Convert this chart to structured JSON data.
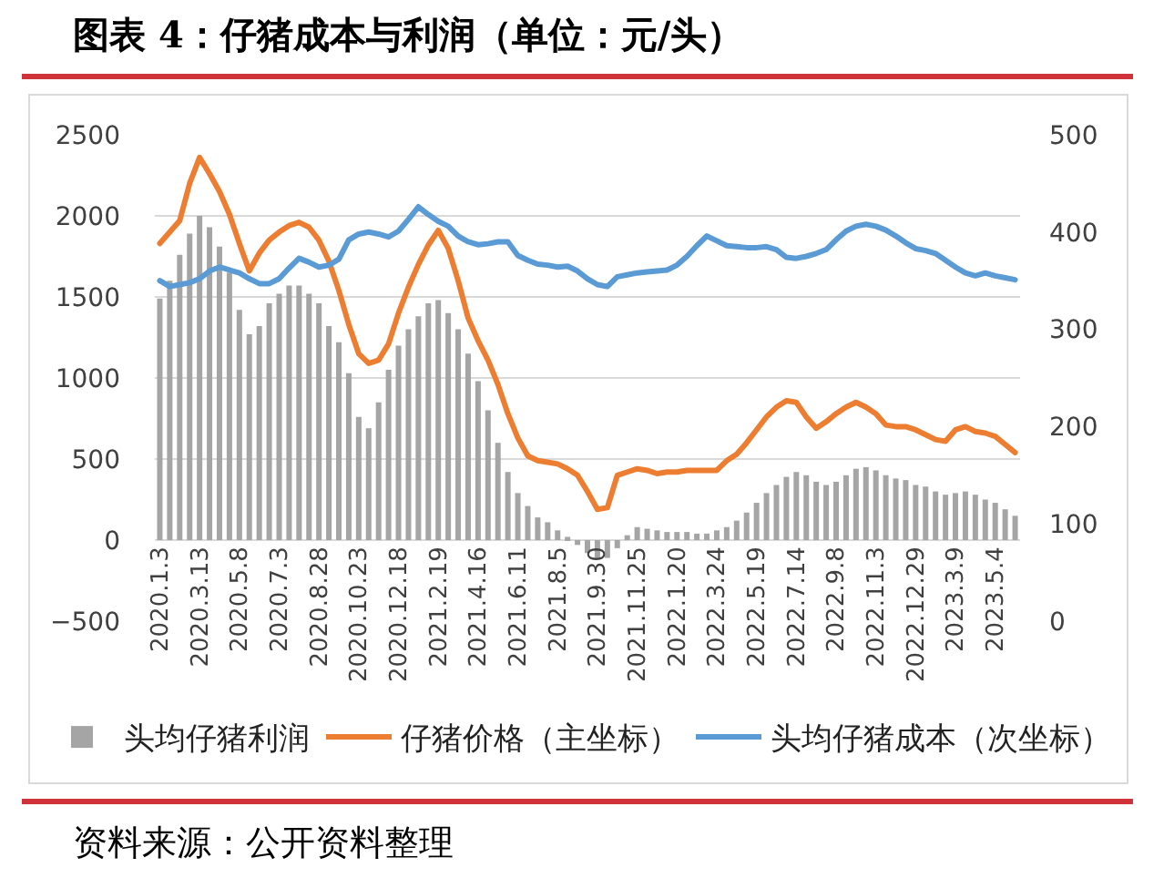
{
  "chart_data": {
    "type": "bar",
    "title": "图表 4：仔猪成本与利润（单位：元/头）",
    "categories": [
      "2020.1.3",
      null,
      null,
      null,
      "2020.3.13",
      null,
      null,
      null,
      "2020.5.8",
      null,
      null,
      null,
      "2020.7.3",
      null,
      null,
      null,
      "2020.8.28",
      null,
      null,
      null,
      "2020.10.23",
      null,
      null,
      null,
      "2020.12.18",
      null,
      null,
      null,
      "2021.2.19",
      null,
      null,
      null,
      "2021.4.16",
      null,
      null,
      null,
      "2021.6.11",
      null,
      null,
      null,
      "2021.8.5",
      null,
      null,
      null,
      "2021.9.30",
      null,
      null,
      null,
      "2021.11.25",
      null,
      null,
      null,
      "2022.1.20",
      null,
      null,
      null,
      "2022.3.24",
      null,
      null,
      null,
      "2022.5.19",
      null,
      null,
      null,
      "2022.7.14",
      null,
      null,
      null,
      "2022.9.8",
      null,
      null,
      null,
      "2022.11.3",
      null,
      null,
      null,
      "2022.12.29",
      null,
      null,
      null,
      "2023.3.9",
      null,
      null,
      null,
      "2023.5.4",
      null,
      null
    ],
    "series": [
      {
        "name": "头均仔猪利润",
        "color": "#a5a5a5",
        "values": [
          1490,
          1600,
          1760,
          1890,
          2000,
          1930,
          1810,
          1650,
          1420,
          1270,
          1320,
          1460,
          1520,
          1570,
          1570,
          1520,
          1460,
          1320,
          1220,
          1030,
          760,
          690,
          850,
          1050,
          1200,
          1300,
          1380,
          1460,
          1480,
          1400,
          1300,
          1150,
          980,
          800,
          600,
          420,
          290,
          210,
          140,
          110,
          60,
          20,
          -30,
          -80,
          -110,
          -110,
          -50,
          30,
          80,
          70,
          60,
          50,
          50,
          50,
          40,
          40,
          60,
          80,
          120,
          170,
          230,
          290,
          340,
          390,
          420,
          400,
          360,
          340,
          360,
          400,
          440,
          450,
          430,
          400,
          380,
          370,
          340,
          330,
          300,
          280,
          290,
          300,
          280,
          250,
          230,
          190,
          150
        ]
      },
      {
        "name": "仔猪价格（主坐标）",
        "type": "line",
        "color": "#ed7d31",
        "values": [
          1830,
          1900,
          1970,
          2200,
          2360,
          2260,
          2150,
          2010,
          1830,
          1660,
          1770,
          1850,
          1900,
          1940,
          1960,
          1930,
          1850,
          1720,
          1540,
          1330,
          1150,
          1090,
          1110,
          1210,
          1400,
          1560,
          1700,
          1820,
          1910,
          1800,
          1600,
          1370,
          1230,
          1110,
          960,
          780,
          630,
          520,
          490,
          480,
          470,
          440,
          400,
          300,
          190,
          200,
          400,
          420,
          440,
          430,
          410,
          420,
          420,
          430,
          430,
          430,
          430,
          490,
          530,
          600,
          680,
          760,
          820,
          860,
          850,
          760,
          690,
          730,
          780,
          820,
          850,
          820,
          780,
          710,
          700,
          700,
          680,
          650,
          620,
          610,
          680,
          700,
          670,
          660,
          640,
          590,
          540
        ]
      },
      {
        "name": "头均仔猪成本（次坐标）",
        "type": "line",
        "color": "#5b9bd5",
        "axis": "y2",
        "values": [
          350,
          344,
          346,
          348,
          352,
          360,
          364,
          361,
          358,
          352,
          347,
          347,
          352,
          363,
          373,
          369,
          364,
          366,
          372,
          392,
          398,
          400,
          398,
          395,
          401,
          413,
          426,
          418,
          411,
          406,
          396,
          390,
          387,
          388,
          390,
          390,
          376,
          371,
          367,
          366,
          364,
          365,
          360,
          352,
          346,
          344,
          354,
          356,
          358,
          359,
          360,
          361,
          366,
          375,
          386,
          396,
          391,
          386,
          385,
          384,
          384,
          385,
          382,
          374,
          373,
          375,
          378,
          382,
          392,
          401,
          406,
          408,
          406,
          402,
          396,
          389,
          383,
          381,
          378,
          371,
          364,
          358,
          355,
          358,
          355,
          353,
          351
        ]
      }
    ],
    "ylim": [
      -500,
      2500
    ],
    "yticks": [
      -500,
      0,
      500,
      1000,
      1500,
      2000,
      2500
    ],
    "y2lim": [
      0,
      500
    ],
    "y2ticks": [
      0,
      100,
      200,
      300,
      400,
      500
    ],
    "grid": "y",
    "legend": "bottom",
    "marker": "none",
    "line_style": "solid",
    "annotations": [
      "资料来源：公开资料整理"
    ]
  }
}
